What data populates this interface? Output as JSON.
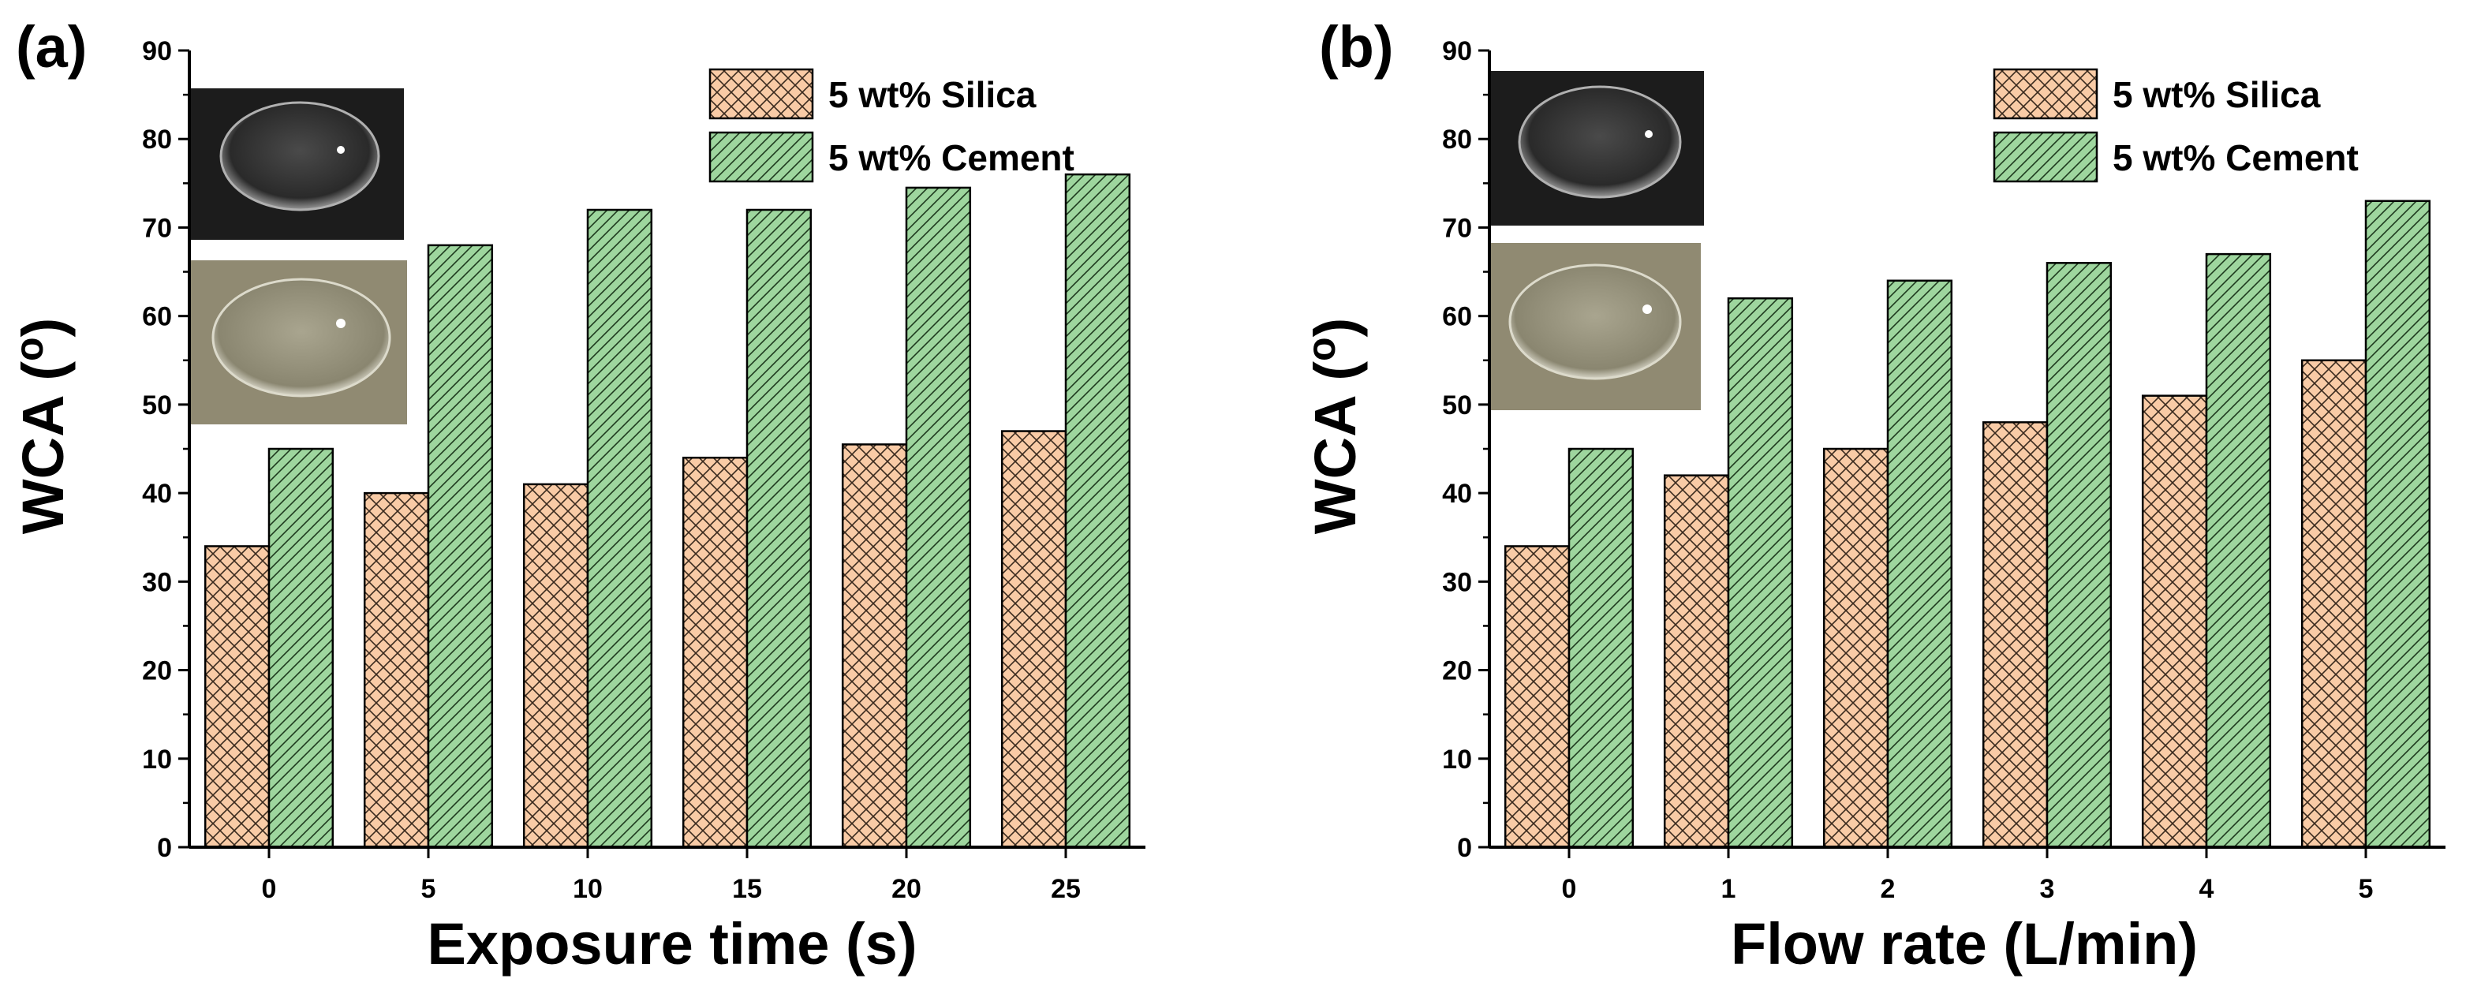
{
  "colors": {
    "silica_fill": "#f9cba6",
    "silica_hatch": "#3a2a1e",
    "cement_fill": "#9ed69e",
    "cement_hatch": "#1e3a1e",
    "axis": "#000000",
    "photo_dark": "#1c1c1c",
    "photo_light": "#908a72"
  },
  "chart_data": [
    {
      "panel_label": "(a)",
      "type": "bar",
      "xlabel": "Exposure time  (s)",
      "ylabel": "WCA (o)",
      "ylabel_main": "WCA (",
      "ylabel_sup": "o",
      "ylabel_end": ")",
      "categories": [
        "0",
        "5",
        "10",
        "15",
        "20",
        "25"
      ],
      "ylim": [
        0,
        90
      ],
      "yticks": [
        "0",
        "10",
        "20",
        "30",
        "40",
        "50",
        "60",
        "70",
        "80",
        "90"
      ],
      "legend_position": "top-right",
      "series": [
        {
          "name": "5 wt% Silica",
          "values": [
            34,
            40,
            41,
            44,
            45.5,
            47
          ],
          "pattern": "crosshatch"
        },
        {
          "name": "5 wt% Cement",
          "values": [
            45,
            68,
            72,
            72,
            74.5,
            76
          ],
          "pattern": "diagonal"
        }
      ],
      "insets": [
        "water droplet on dark coating (photo)",
        "water droplet on cement coating (photo)"
      ]
    },
    {
      "panel_label": "(b)",
      "type": "bar",
      "xlabel": "Flow rate  (L/min)",
      "ylabel": "WCA (o)",
      "ylabel_main": "WCA (",
      "ylabel_sup": "o",
      "ylabel_end": ")",
      "categories": [
        "0",
        "1",
        "2",
        "3",
        "4",
        "5"
      ],
      "ylim": [
        0,
        90
      ],
      "yticks": [
        "0",
        "10",
        "20",
        "30",
        "40",
        "50",
        "60",
        "70",
        "80",
        "90"
      ],
      "legend_position": "top-right",
      "series": [
        {
          "name": "5 wt% Silica",
          "values": [
            34,
            42,
            45,
            48,
            51,
            55
          ],
          "pattern": "crosshatch"
        },
        {
          "name": "5 wt% Cement",
          "values": [
            45,
            62,
            64,
            66,
            67,
            73
          ],
          "pattern": "diagonal"
        }
      ],
      "insets": [
        "water droplet on dark coating (photo)",
        "water droplet on cement coating (photo)"
      ]
    }
  ]
}
